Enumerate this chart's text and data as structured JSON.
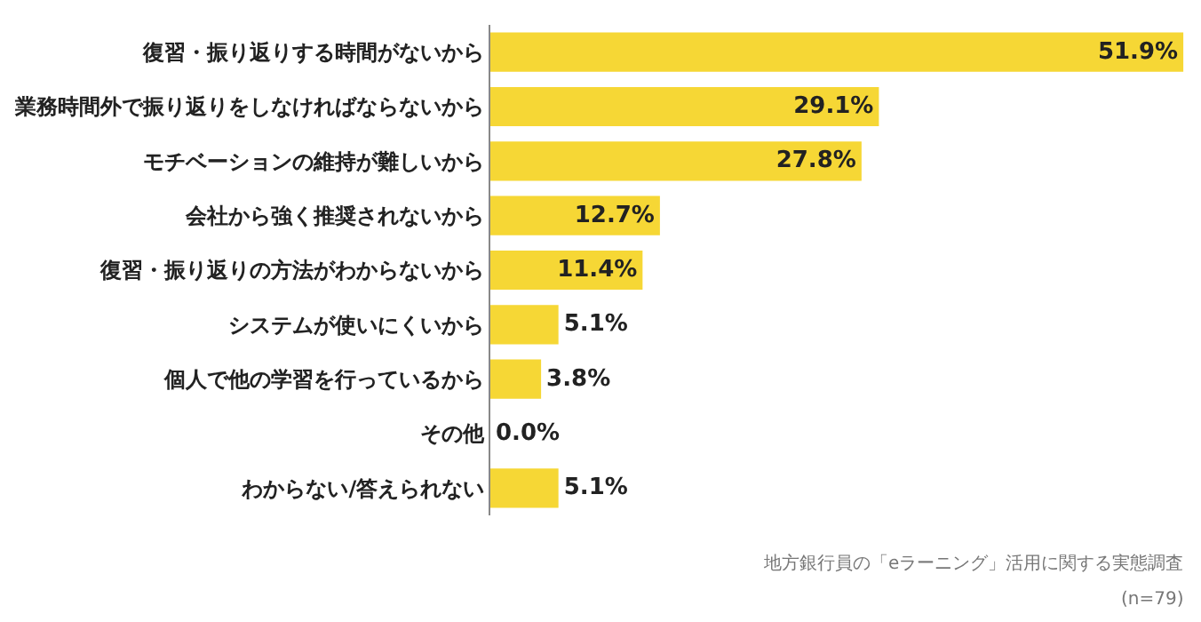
{
  "chart_data": {
    "type": "bar",
    "orientation": "horizontal",
    "categories": [
      "復習・振り返りする時間がないから",
      "業務時間外で振り返りをしなければならないから",
      "モチベーションの維持が難しいから",
      "会社から強く推奨されないから",
      "復習・振り返りの方法がわからないから",
      "システムが使いにくいから",
      "個人で他の学習を行っているから",
      "その他",
      "わからない/答えられない"
    ],
    "values": [
      51.9,
      29.1,
      27.8,
      12.7,
      11.4,
      5.1,
      3.8,
      0.0,
      5.1
    ],
    "value_labels": [
      "51.9%",
      "29.1%",
      "27.8%",
      "12.7%",
      "11.4%",
      "5.1%",
      "3.8%",
      "0.0%",
      "5.1%"
    ],
    "color": "#f6d735",
    "annotations": [
      "地方銀行員の「eラーニング」活用に関する実態調査",
      "(n=79)"
    ],
    "legend": false
  }
}
